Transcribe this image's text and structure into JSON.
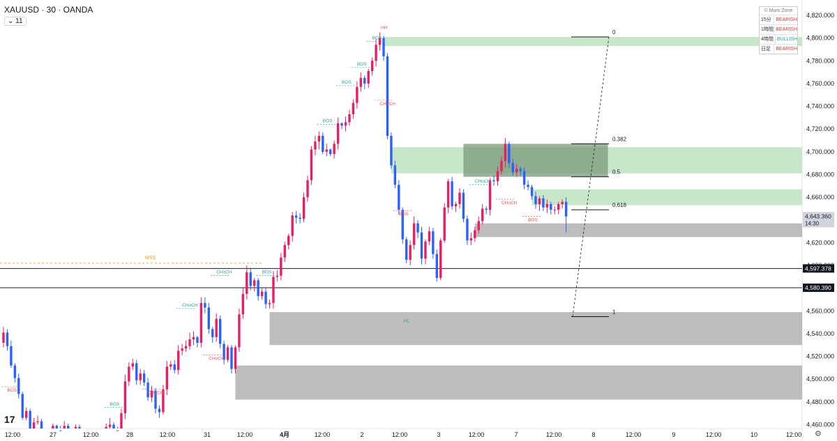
{
  "header": {
    "symbol_line": "XAUUSD · 30 · OANDA",
    "interval_badge": "11"
  },
  "panel": {
    "title": "© Muro Zone",
    "rows": [
      {
        "tf": "15分",
        "status": "BEARISH",
        "color": "#e53935"
      },
      {
        "tf": "1時間",
        "status": "BEARISH",
        "color": "#e53935"
      },
      {
        "tf": "4時間",
        "status": "BULLISH",
        "color": "#26a69a"
      },
      {
        "tf": "日足",
        "status": "BEARISH",
        "color": "#e53935"
      }
    ]
  },
  "logo": "17",
  "colors": {
    "up": "#e91e63",
    "down": "#2962ff",
    "bos_green": "#26a69a",
    "bos_red": "#ef5350",
    "mss": "#ff9800",
    "zone_green": "#c8e6c9",
    "zone_gray": "#bdbdbd",
    "axis_text": "#131722"
  },
  "chart_data": {
    "type": "candlestick",
    "symbol": "XAUUSD",
    "timeframe": "30",
    "ylim": [
      4450,
      4830
    ],
    "y_ticks": [
      4460,
      4480,
      4500,
      4520,
      4540,
      4560,
      4580,
      4600,
      4620,
      4640,
      4660,
      4680,
      4700,
      4720,
      4740,
      4760,
      4780,
      4800,
      4820
    ],
    "y_tick_labels": [
      "4,460.000",
      "4,480.000",
      "4,500.000",
      "4,520.000",
      "4,540.000",
      "4,560.000",
      "4,580.000",
      "4,600.000",
      "4,620.000",
      "4,640.000",
      "4,660.000",
      "4,680.000",
      "4,700.000",
      "4,720.000",
      "4,740.000",
      "4,760.000",
      "4,780.000",
      "4,800.000",
      "4,820.000"
    ],
    "x_ticks": [
      "12:00",
      "27",
      "12:00",
      "28",
      "12:00",
      "31",
      "12:00",
      "4月",
      "12:00",
      "2",
      "12:00",
      "3",
      "12:00",
      "7",
      "12:00",
      "8",
      "12:00",
      "9",
      "12:00",
      "10",
      "12:00"
    ],
    "current_price": {
      "label": "4,643.360",
      "sub": "14:30",
      "value": 4643.36
    },
    "price_lines": [
      {
        "label": "4,597.378",
        "value": 4597.378
      },
      {
        "label": "4,580.390",
        "value": 4580.39
      }
    ],
    "mss": {
      "label": "MSS",
      "value": 4602
    },
    "swing_labels": [
      {
        "text": "HH",
        "price": 4808,
        "bar": 100,
        "color": "red"
      },
      {
        "text": "HL",
        "price": 4550,
        "bar": 106,
        "color": "green"
      }
    ],
    "structure_labels": [
      {
        "text": "BOS",
        "price": 4489,
        "bar": 1,
        "color": "red"
      },
      {
        "text": "BOS",
        "price": 4477,
        "bar": 28,
        "color": "green"
      },
      {
        "text": "CHoCH",
        "price": 4487,
        "bar": 38,
        "color": "red"
      },
      {
        "text": "CHoCH",
        "price": 4564,
        "bar": 47,
        "color": "green"
      },
      {
        "text": "CHoCH",
        "price": 4517,
        "bar": 54,
        "color": "red"
      },
      {
        "text": "CHoCH",
        "price": 4593,
        "bar": 56,
        "color": "green"
      },
      {
        "text": "BOS",
        "price": 4593,
        "bar": 68,
        "color": "green"
      },
      {
        "text": "BOS",
        "price": 4726,
        "bar": 84,
        "color": "green"
      },
      {
        "text": "BOS",
        "price": 4760,
        "bar": 89,
        "color": "green"
      },
      {
        "text": "BOS",
        "price": 4776,
        "bar": 93,
        "color": "green"
      },
      {
        "text": "BOS",
        "price": 4799,
        "bar": 97,
        "color": "green"
      },
      {
        "text": "CHoCH",
        "price": 4741,
        "bar": 99,
        "color": "red"
      },
      {
        "text": "BOS",
        "price": 4644,
        "bar": 104,
        "color": "red"
      },
      {
        "text": "CHoCH",
        "price": 4673,
        "bar": 124,
        "color": "green"
      },
      {
        "text": "CHoCH",
        "price": 4654,
        "bar": 131,
        "color": "red"
      },
      {
        "text": "BOS",
        "price": 4639,
        "bar": 138,
        "color": "red"
      }
    ],
    "zones": [
      {
        "kind": "green",
        "top": 4801,
        "bottom": 4793,
        "x_start_bar": 100
      },
      {
        "kind": "green",
        "top": 4704,
        "bottom": 4681,
        "x_start_bar": 102
      },
      {
        "kind": "green",
        "top": 4667,
        "bottom": 4653,
        "x_start_bar": 139
      },
      {
        "kind": "dark",
        "top": 4707,
        "bottom": 4678,
        "x_start_bar": 121,
        "x_end_bar": 159
      },
      {
        "kind": "gray",
        "top": 4637,
        "bottom": 4625,
        "x_start_bar": 124
      },
      {
        "kind": "gray",
        "top": 4559,
        "bottom": 4530,
        "x_start_bar": 70
      },
      {
        "kind": "gray",
        "top": 4512,
        "bottom": 4482,
        "x_start_bar": 61
      }
    ],
    "fib_levels": [
      {
        "label": "0",
        "value": 4801
      },
      {
        "label": "0.382",
        "value": 4707
      },
      {
        "label": "0.5",
        "value": 4678
      },
      {
        "label": "0.618",
        "value": 4649
      },
      {
        "label": "1",
        "value": 4555
      }
    ],
    "bars": {
      "o": [
        4532,
        4541,
        4529,
        4512,
        4501,
        4487,
        4466,
        4472,
        4454,
        4462,
        4463,
        4447,
        4445,
        4451,
        4459,
        4455,
        4446,
        4459,
        4445,
        4450,
        4458,
        4450,
        4436,
        4444,
        4452,
        4450,
        4442,
        4446,
        4458,
        4460,
        4449,
        4455,
        4470,
        4498,
        4511,
        4514,
        4499,
        4505,
        4497,
        4484,
        4490,
        4474,
        4471,
        4491,
        4511,
        4513,
        4508,
        4525,
        4527,
        4529,
        4535,
        4537,
        4532,
        4567,
        4563,
        4544,
        4537,
        4553,
        4531,
        4517,
        4528,
        4509,
        4528,
        4557,
        4575,
        4594,
        4582,
        4587,
        4573,
        4577,
        4566,
        4567,
        4590,
        4591,
        4607,
        4618,
        4626,
        4644,
        4642,
        4641,
        4660,
        4675,
        4702,
        4709,
        4714,
        4700,
        4702,
        4698,
        4707,
        4725,
        4723,
        4726,
        4733,
        4743,
        4757,
        4765,
        4760,
        4771,
        4780,
        4794,
        4800,
        4784,
        4714,
        4688,
        4671,
        4649,
        4623,
        4605,
        4618,
        4637,
        4629,
        4606,
        4621,
        4630,
        4610,
        4589,
        4622,
        4651,
        4674,
        4652,
        4654,
        4664,
        4641,
        4622,
        4624,
        4631,
        4639,
        4650,
        4649,
        4675,
        4674,
        4683,
        4692,
        4707,
        4690,
        4682,
        4685,
        4683,
        4671,
        4669,
        4661,
        4654,
        4659,
        4651,
        4654,
        4649,
        4649,
        4654,
        4656
      ],
      "c": [
        4541,
        4529,
        4512,
        4501,
        4487,
        4466,
        4472,
        4454,
        4462,
        4463,
        4447,
        4445,
        4451,
        4459,
        4455,
        4446,
        4459,
        4445,
        4450,
        4458,
        4450,
        4436,
        4444,
        4452,
        4450,
        4442,
        4446,
        4458,
        4460,
        4449,
        4455,
        4470,
        4498,
        4511,
        4514,
        4499,
        4505,
        4497,
        4484,
        4490,
        4474,
        4471,
        4491,
        4511,
        4513,
        4508,
        4525,
        4527,
        4529,
        4535,
        4537,
        4532,
        4567,
        4563,
        4544,
        4537,
        4553,
        4531,
        4517,
        4528,
        4509,
        4528,
        4557,
        4575,
        4594,
        4582,
        4587,
        4573,
        4577,
        4566,
        4567,
        4590,
        4591,
        4607,
        4618,
        4626,
        4644,
        4642,
        4641,
        4660,
        4675,
        4702,
        4709,
        4714,
        4700,
        4702,
        4698,
        4707,
        4725,
        4723,
        4726,
        4733,
        4743,
        4757,
        4765,
        4760,
        4771,
        4780,
        4794,
        4800,
        4784,
        4714,
        4688,
        4671,
        4649,
        4623,
        4605,
        4618,
        4637,
        4629,
        4606,
        4621,
        4630,
        4610,
        4589,
        4622,
        4651,
        4674,
        4652,
        4654,
        4664,
        4641,
        4622,
        4624,
        4631,
        4639,
        4650,
        4649,
        4675,
        4674,
        4683,
        4692,
        4707,
        4690,
        4682,
        4685,
        4683,
        4671,
        4669,
        4661,
        4654,
        4659,
        4651,
        4654,
        4649,
        4649,
        4654,
        4656,
        4643
      ],
      "h": [
        4546,
        4544,
        4534,
        4514,
        4505,
        4489,
        4475,
        4474,
        4466,
        4468,
        4465,
        4450,
        4454,
        4461,
        4460,
        4459,
        4463,
        4461,
        4453,
        4460,
        4460,
        4453,
        4448,
        4456,
        4455,
        4454,
        4448,
        4461,
        4466,
        4462,
        4458,
        4474,
        4504,
        4515,
        4518,
        4517,
        4509,
        4508,
        4501,
        4494,
        4492,
        4477,
        4495,
        4516,
        4516,
        4517,
        4530,
        4531,
        4534,
        4541,
        4542,
        4538,
        4572,
        4572,
        4567,
        4546,
        4558,
        4556,
        4534,
        4530,
        4530,
        4530,
        4562,
        4580,
        4600,
        4598,
        4589,
        4589,
        4580,
        4580,
        4570,
        4595,
        4596,
        4611,
        4621,
        4628,
        4647,
        4648,
        4646,
        4664,
        4679,
        4705,
        4714,
        4718,
        4717,
        4707,
        4703,
        4710,
        4730,
        4726,
        4731,
        4737,
        4746,
        4762,
        4770,
        4767,
        4773,
        4783,
        4799,
        4805,
        4802,
        4787,
        4717,
        4692,
        4675,
        4651,
        4625,
        4622,
        4643,
        4640,
        4634,
        4623,
        4634,
        4633,
        4614,
        4624,
        4655,
        4676,
        4678,
        4656,
        4668,
        4667,
        4644,
        4629,
        4634,
        4643,
        4654,
        4652,
        4677,
        4679,
        4687,
        4696,
        4712,
        4709,
        4694,
        4689,
        4687,
        4686,
        4675,
        4671,
        4665,
        4661,
        4662,
        4658,
        4656,
        4652,
        4656,
        4658,
        4660
      ],
      "l": [
        4528,
        4525,
        4510,
        4497,
        4483,
        4464,
        4464,
        4450,
        4451,
        4460,
        4445,
        4442,
        4443,
        4446,
        4451,
        4444,
        4441,
        4442,
        4443,
        4447,
        4447,
        4433,
        4434,
        4440,
        4446,
        4439,
        4440,
        4443,
        4455,
        4446,
        4446,
        4451,
        4465,
        4494,
        4508,
        4495,
        4495,
        4494,
        4481,
        4480,
        4470,
        4466,
        4469,
        4486,
        4508,
        4505,
        4504,
        4521,
        4524,
        4526,
        4530,
        4528,
        4528,
        4558,
        4540,
        4532,
        4533,
        4527,
        4513,
        4515,
        4505,
        4505,
        4524,
        4553,
        4570,
        4578,
        4577,
        4569,
        4570,
        4562,
        4562,
        4562,
        4586,
        4587,
        4603,
        4614,
        4621,
        4637,
        4637,
        4638,
        4656,
        4671,
        4697,
        4702,
        4698,
        4696,
        4696,
        4694,
        4702,
        4720,
        4718,
        4723,
        4729,
        4738,
        4753,
        4755,
        4756,
        4767,
        4775,
        4789,
        4780,
        4711,
        4685,
        4668,
        4645,
        4619,
        4602,
        4600,
        4614,
        4624,
        4601,
        4601,
        4618,
        4606,
        4586,
        4587,
        4620,
        4646,
        4649,
        4647,
        4650,
        4638,
        4618,
        4618,
        4621,
        4628,
        4636,
        4645,
        4644,
        4670,
        4670,
        4680,
        4686,
        4686,
        4679,
        4678,
        4679,
        4667,
        4666,
        4658,
        4650,
        4648,
        4648,
        4646,
        4645,
        4645,
        4645,
        4650,
        4629
      ]
    }
  }
}
